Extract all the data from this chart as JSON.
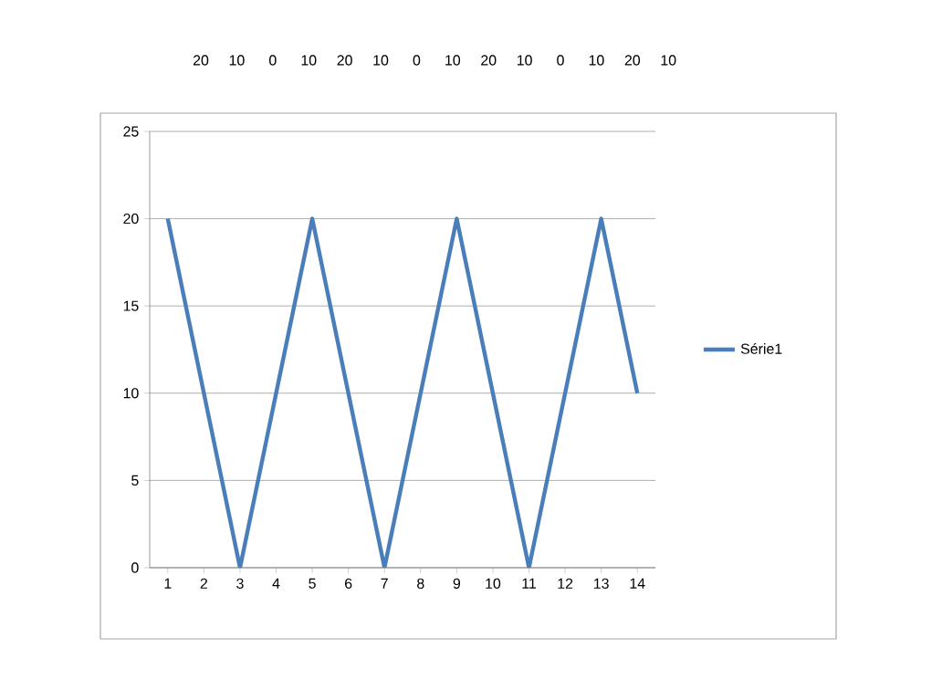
{
  "chart_data": {
    "type": "line",
    "categories": [
      "1",
      "2",
      "3",
      "4",
      "5",
      "6",
      "7",
      "8",
      "9",
      "10",
      "11",
      "12",
      "13",
      "14"
    ],
    "series": [
      {
        "name": "Série1",
        "color": "#4a7ebb",
        "values": [
          20,
          10,
          0,
          10,
          20,
          10,
          0,
          10,
          20,
          10,
          0,
          10,
          20,
          10
        ]
      }
    ],
    "annotations": [
      "20",
      "10",
      "0",
      "10",
      "20",
      "10",
      "0",
      "10",
      "20",
      "10",
      "0",
      "10",
      "20",
      "10"
    ],
    "ylim": [
      0,
      25
    ],
    "yticks": [
      0,
      5,
      10,
      15,
      20,
      25
    ],
    "grid": "y",
    "legend": "right",
    "marker": "none",
    "line_style": "solid"
  }
}
